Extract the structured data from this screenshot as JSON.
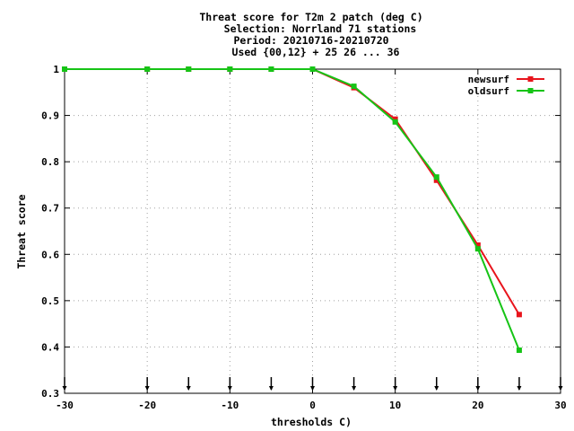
{
  "chart_data": {
    "type": "line",
    "title_lines": [
      "Threat score  for T2m 2 patch (deg C)",
      "Selection: Norrland     71 stations",
      "Period: 20210716-20210720",
      "Used {00,12} + 25 26 ... 36"
    ],
    "xlabel": "thresholds C)",
    "ylabel": "Threat score",
    "xlim": [
      -30,
      30
    ],
    "ylim": [
      0.3,
      1.0
    ],
    "xticks": [
      -30,
      -20,
      -10,
      0,
      10,
      20,
      30
    ],
    "xtick_labels": [
      "-30",
      "-20",
      "-10",
      "0",
      "10",
      "20",
      "30"
    ],
    "yticks": [
      0.3,
      0.4,
      0.5,
      0.6,
      0.7,
      0.8,
      0.9,
      1.0
    ],
    "ytick_labels": [
      "0.3",
      "0.4",
      "0.5",
      "0.6",
      "0.7",
      "0.8",
      "0.9",
      "1"
    ],
    "grid": true,
    "legend_position": "top-right",
    "threshold_markers": [
      -30,
      -20,
      -15,
      -10,
      -5,
      0,
      5,
      10,
      15,
      20,
      25,
      30
    ],
    "series": [
      {
        "name": "newsurf",
        "color": "#e8141c",
        "x": [
          -30,
          -20,
          -15,
          -10,
          -5,
          0,
          5,
          10,
          15,
          20,
          25
        ],
        "y": [
          1.0,
          1.0,
          1.0,
          1.0,
          1.0,
          1.0,
          0.96,
          0.892,
          0.76,
          0.62,
          0.47
        ]
      },
      {
        "name": "oldsurf",
        "color": "#16c416",
        "x": [
          -30,
          -20,
          -15,
          -10,
          -5,
          0,
          5,
          10,
          15,
          20,
          25
        ],
        "y": [
          1.0,
          1.0,
          1.0,
          1.0,
          1.0,
          1.0,
          0.963,
          0.886,
          0.767,
          0.612,
          0.393
        ]
      }
    ]
  }
}
